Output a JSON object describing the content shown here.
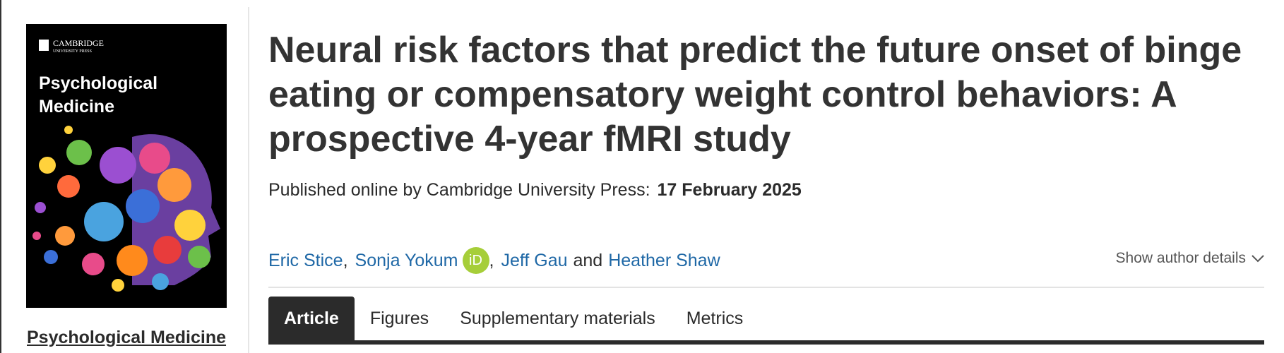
{
  "cover": {
    "publisher": "CAMBRIDGE",
    "publisher_sub": "UNIVERSITY PRESS",
    "title_line1": "Psychological",
    "title_line2": "Medicine"
  },
  "journal_link": "Psychological Medicine",
  "article": {
    "title": "Neural risk factors that predict the future onset of binge eating or compensatory weight control behaviors: A prospective 4-year fMRI study",
    "published_label": "Published online by Cambridge University Press:",
    "published_date": "17 February 2025",
    "authors": [
      {
        "name": "Eric Stice",
        "after": ","
      },
      {
        "name": "Sonja Yokum",
        "orcid": "iD",
        "after": ","
      },
      {
        "name": "Jeff Gau",
        "after": "and"
      },
      {
        "name": "Heather Shaw"
      }
    ],
    "show_author_details": "Show author details"
  },
  "tabs": [
    "Article",
    "Figures",
    "Supplementary materials",
    "Metrics"
  ]
}
